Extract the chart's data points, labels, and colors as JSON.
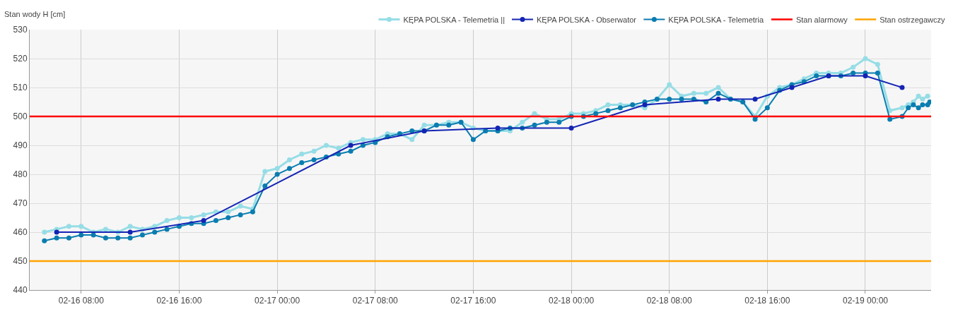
{
  "chart_data": {
    "type": "line",
    "ylabel": "Stan wody H [cm]",
    "xlim": [
      "--02-16T03:48",
      "--02-19T05:22"
    ],
    "xticks": [
      {
        "value": "--02-16T08:00",
        "label": "02-16 08:00"
      },
      {
        "value": "--02-16T16:00",
        "label": "02-16 16:00"
      },
      {
        "value": "--02-17T00:00",
        "label": "02-17 00:00"
      },
      {
        "value": "--02-17T08:00",
        "label": "02-17 08:00"
      },
      {
        "value": "--02-17T16:00",
        "label": "02-17 16:00"
      },
      {
        "value": "--02-18T00:00",
        "label": "02-18 00:00"
      },
      {
        "value": "--02-18T08:00",
        "label": "02-18 08:00"
      },
      {
        "value": "--02-18T16:00",
        "label": "02-18 16:00"
      },
      {
        "value": "--02-19T00:00",
        "label": "02-19 00:00"
      }
    ],
    "ylim": [
      440,
      530
    ],
    "yticks": [
      440,
      450,
      460,
      470,
      480,
      490,
      500,
      510,
      520,
      530
    ],
    "grid": true,
    "legend": "top right",
    "marker": "circle",
    "line_style": "solid",
    "series": [
      {
        "name": "KĘPA POLSKA - Telemetria ||",
        "color": "#96dde6",
        "x": [
          "--02-16T05:00",
          "--02-16T06:00",
          "--02-16T07:00",
          "--02-16T08:00",
          "--02-16T09:00",
          "--02-16T10:00",
          "--02-16T11:00",
          "--02-16T12:00",
          "--02-16T13:00",
          "--02-16T14:00",
          "--02-16T15:00",
          "--02-16T16:00",
          "--02-16T17:00",
          "--02-16T18:00",
          "--02-16T19:00",
          "--02-16T20:00",
          "--02-16T21:00",
          "--02-16T22:00",
          "--02-16T23:00",
          "--02-17T00:00",
          "--02-17T01:00",
          "--02-17T02:00",
          "--02-17T03:00",
          "--02-17T04:00",
          "--02-17T05:00",
          "--02-17T06:00",
          "--02-17T07:00",
          "--02-17T08:00",
          "--02-17T09:00",
          "--02-17T10:00",
          "--02-17T11:00",
          "--02-17T12:00",
          "--02-17T13:00",
          "--02-17T14:00",
          "--02-17T15:00",
          "--02-17T16:00",
          "--02-17T17:00",
          "--02-17T18:00",
          "--02-17T19:00",
          "--02-17T20:00",
          "--02-17T21:00",
          "--02-17T22:00",
          "--02-17T23:00",
          "--02-18T00:00",
          "--02-18T01:00",
          "--02-18T02:00",
          "--02-18T03:00",
          "--02-18T04:00",
          "--02-18T05:00",
          "--02-18T06:00",
          "--02-18T07:00",
          "--02-18T08:00",
          "--02-18T09:00",
          "--02-18T10:00",
          "--02-18T11:00",
          "--02-18T12:00",
          "--02-18T13:00",
          "--02-18T14:00",
          "--02-18T15:00",
          "--02-18T16:00",
          "--02-18T17:00",
          "--02-18T18:00",
          "--02-18T19:00",
          "--02-18T20:00",
          "--02-18T21:00",
          "--02-18T22:00",
          "--02-18T23:00",
          "--02-19T00:00",
          "--02-19T01:00",
          "--02-19T02:00",
          "--02-19T03:00",
          "--02-19T03:30",
          "--02-19T03:55",
          "--02-19T04:20",
          "--02-19T04:40",
          "--02-19T05:05"
        ],
        "values": [
          460,
          461,
          462,
          462,
          460,
          461,
          460,
          462,
          461,
          462,
          464,
          465,
          465,
          466,
          467,
          467,
          469,
          468,
          481,
          482,
          485,
          487,
          488,
          490,
          489,
          491,
          492,
          492,
          494,
          494,
          492,
          497,
          497,
          498,
          498,
          496,
          495,
          495,
          495,
          498,
          501,
          499,
          499,
          501,
          501,
          502,
          504,
          504,
          504,
          503,
          506,
          511,
          507,
          508,
          508,
          510,
          506,
          505,
          500,
          507,
          510,
          511,
          513,
          515,
          515,
          515,
          517,
          520,
          518,
          502,
          503,
          504,
          505,
          507,
          506,
          507
        ]
      },
      {
        "name": "KĘPA POLSKA - Obserwator",
        "color": "#1424b4",
        "x": [
          "--02-16T06:00",
          "--02-16T12:00",
          "--02-16T18:00",
          "--02-17T06:00",
          "--02-17T12:00",
          "--02-17T18:00",
          "--02-18T00:00",
          "--02-18T06:00",
          "--02-18T12:00",
          "--02-18T15:00",
          "--02-18T18:00",
          "--02-18T21:00",
          "--02-19T00:00",
          "--02-19T03:00"
        ],
        "values": [
          460,
          460,
          464,
          490,
          495,
          496,
          496,
          504,
          506,
          506,
          510,
          514,
          514,
          510
        ]
      },
      {
        "name": "KĘPA POLSKA - Telemetria",
        "color": "#0a7db0",
        "x": [
          "--02-16T05:00",
          "--02-16T06:00",
          "--02-16T07:00",
          "--02-16T08:00",
          "--02-16T09:00",
          "--02-16T10:00",
          "--02-16T11:00",
          "--02-16T12:00",
          "--02-16T13:00",
          "--02-16T14:00",
          "--02-16T15:00",
          "--02-16T16:00",
          "--02-16T17:00",
          "--02-16T18:00",
          "--02-16T19:00",
          "--02-16T20:00",
          "--02-16T21:00",
          "--02-16T22:00",
          "--02-16T23:00",
          "--02-17T00:00",
          "--02-17T01:00",
          "--02-17T02:00",
          "--02-17T03:00",
          "--02-17T04:00",
          "--02-17T05:00",
          "--02-17T06:00",
          "--02-17T07:00",
          "--02-17T08:00",
          "--02-17T09:00",
          "--02-17T10:00",
          "--02-17T11:00",
          "--02-17T12:00",
          "--02-17T13:00",
          "--02-17T14:00",
          "--02-17T15:00",
          "--02-17T16:00",
          "--02-17T17:00",
          "--02-17T18:00",
          "--02-17T19:00",
          "--02-17T20:00",
          "--02-17T21:00",
          "--02-17T22:00",
          "--02-17T23:00",
          "--02-18T00:00",
          "--02-18T01:00",
          "--02-18T02:00",
          "--02-18T03:00",
          "--02-18T04:00",
          "--02-18T05:00",
          "--02-18T06:00",
          "--02-18T07:00",
          "--02-18T08:00",
          "--02-18T09:00",
          "--02-18T10:00",
          "--02-18T11:00",
          "--02-18T12:00",
          "--02-18T13:00",
          "--02-18T14:00",
          "--02-18T15:00",
          "--02-18T16:00",
          "--02-18T17:00",
          "--02-18T18:00",
          "--02-18T19:00",
          "--02-18T20:00",
          "--02-18T21:00",
          "--02-18T22:00",
          "--02-18T23:00",
          "--02-19T00:00",
          "--02-19T01:00",
          "--02-19T02:00",
          "--02-19T03:00",
          "--02-19T03:30",
          "--02-19T03:55",
          "--02-19T04:20",
          "--02-19T04:40",
          "--02-19T05:05",
          "--02-19T05:15"
        ],
        "values": [
          457,
          458,
          458,
          459,
          459,
          458,
          458,
          458,
          459,
          460,
          461,
          462,
          463,
          463,
          464,
          465,
          466,
          467,
          476,
          480,
          482,
          484,
          485,
          486,
          487,
          488,
          490,
          491,
          493,
          494,
          495,
          495,
          497,
          497,
          498,
          492,
          495,
          495,
          496,
          496,
          497,
          498,
          498,
          500,
          500,
          501,
          502,
          503,
          504,
          505,
          506,
          506,
          506,
          506,
          505,
          508,
          506,
          505,
          499,
          503,
          509,
          511,
          512,
          514,
          514,
          514,
          515,
          515,
          515,
          499,
          500,
          503,
          504,
          503,
          504,
          504,
          505
        ]
      }
    ],
    "ref_lines": [
      {
        "axis": "y",
        "value": 500,
        "label": "Stan alarmowy",
        "color": "#ff0000"
      },
      {
        "axis": "y",
        "value": 450,
        "label": "Stan ostrzegawczy",
        "color": "#ffa500"
      }
    ]
  }
}
